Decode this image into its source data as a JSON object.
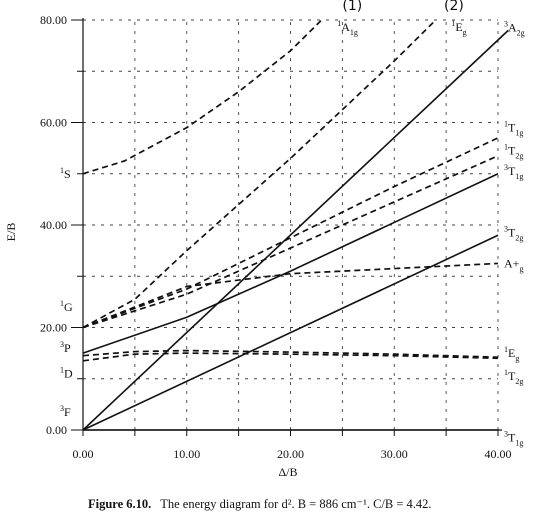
{
  "chart_data": {
    "type": "line",
    "title": "",
    "xlabel": "Δ/B",
    "ylabel": "E/B",
    "xlim": [
      0,
      40
    ],
    "ylim": [
      0,
      80
    ],
    "x_ticks": [
      "0.00",
      "10.00",
      "20.00",
      "30.00",
      "40.00"
    ],
    "y_ticks": [
      "0.00",
      "20.00",
      "40.00",
      "60.00",
      "80.00"
    ],
    "grid": true,
    "series": [
      {
        "name": "3T1g",
        "style": "solid",
        "x": [
          0,
          40
        ],
        "y": [
          0,
          0
        ]
      },
      {
        "name": "3T2g",
        "style": "solid",
        "x": [
          0,
          40
        ],
        "y": [
          0,
          38
        ]
      },
      {
        "name": "3A2g",
        "style": "solid",
        "x": [
          0,
          41
        ],
        "y": [
          0,
          78
        ]
      },
      {
        "name": "3T1g",
        "style": "solid",
        "x": [
          0,
          10,
          20,
          30,
          40
        ],
        "y": [
          15,
          22,
          31,
          40.5,
          50
        ]
      },
      {
        "name": "1T2g",
        "style": "dashed",
        "x": [
          0,
          5,
          10,
          20,
          30,
          40
        ],
        "y": [
          13.5,
          14.8,
          15,
          14.8,
          14.5,
          14
        ]
      },
      {
        "name": "1Eg",
        "style": "dashed",
        "x": [
          0,
          5,
          10,
          20,
          30,
          40
        ],
        "y": [
          14.5,
          15.3,
          15.5,
          15.2,
          14.8,
          14.2
        ]
      },
      {
        "name": "A1g",
        "style": "dashed",
        "x": [
          0,
          10,
          20,
          30,
          40
        ],
        "y": [
          20,
          28,
          30.5,
          31.5,
          32.5
        ]
      },
      {
        "name": "1T2g",
        "style": "dashed",
        "x": [
          0,
          10,
          20,
          30,
          40
        ],
        "y": [
          20,
          26.5,
          35.5,
          44.5,
          53.5
        ]
      },
      {
        "name": "1T1g",
        "style": "dashed",
        "x": [
          0,
          10,
          20,
          30,
          40
        ],
        "y": [
          20,
          27.5,
          37.5,
          47.5,
          57
        ]
      },
      {
        "name": "1Eg",
        "style": "dashed",
        "x": [
          0,
          5,
          10,
          20,
          30,
          34
        ],
        "y": [
          20,
          25.5,
          35,
          53,
          72,
          80
        ]
      },
      {
        "name": "1A1g",
        "style": "dashed",
        "x": [
          0,
          4,
          10,
          15,
          20,
          23
        ],
        "y": [
          50,
          52.5,
          59,
          66,
          74,
          80
        ]
      }
    ],
    "left_labels": [
      {
        "term": "1S",
        "y": 50
      },
      {
        "term": "1G",
        "y": 24
      },
      {
        "term": "3P",
        "y": 16
      },
      {
        "term": "1D",
        "y": 11
      },
      {
        "term": "3F",
        "y": 3.5
      }
    ],
    "right_labels": [
      {
        "term": "3A2g",
        "y": 78.5
      },
      {
        "term": "1T1g",
        "y": 59
      },
      {
        "term": "1T2g",
        "y": 54.5
      },
      {
        "term": "3T1g",
        "y": 50.5
      },
      {
        "term": "3T2g",
        "y": 38.5
      },
      {
        "term": "A+g",
        "y": 32.5
      },
      {
        "term": "1Eg",
        "y": 15
      },
      {
        "term": "1T2g",
        "y": 10.5
      },
      {
        "term": "3T1g",
        "y": -1.5
      }
    ],
    "top_labels": [
      {
        "term": "1A1g",
        "x": 24.5
      },
      {
        "term": "1Eg",
        "x": 35.5
      }
    ],
    "annotations": [
      {
        "text": "(1)",
        "x": 25
      },
      {
        "text": "(2)",
        "x": 34.8
      }
    ]
  },
  "caption": {
    "label": "Figure 6.10.",
    "text": "The energy diagram for d². B = 886 cm⁻¹. C/B = 4.42."
  }
}
